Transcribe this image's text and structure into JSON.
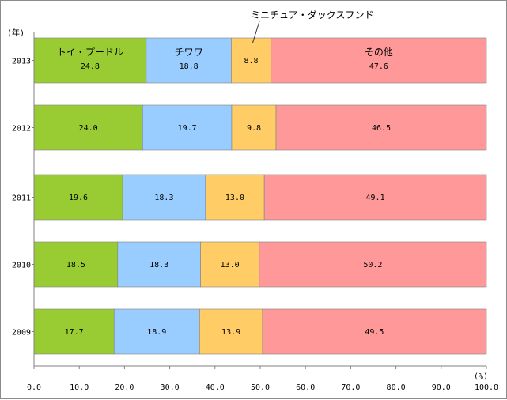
{
  "chart_data": {
    "type": "bar",
    "orientation": "horizontal",
    "stacked": true,
    "ylabel": "(年)",
    "xunit": "(%)",
    "categories": [
      "2013",
      "2012",
      "2011",
      "2010",
      "2009"
    ],
    "series": [
      {
        "name": "トイ・プードル",
        "color": "#99cc33",
        "values": [
          24.8,
          24.0,
          19.6,
          18.5,
          17.7
        ]
      },
      {
        "name": "チワワ",
        "color": "#99ccff",
        "values": [
          18.8,
          19.7,
          18.3,
          18.3,
          18.9
        ]
      },
      {
        "name": "ミニチュア・ダックスフンド",
        "color": "#ffcc66",
        "values": [
          8.8,
          9.8,
          13.0,
          13.0,
          13.9
        ]
      },
      {
        "name": "その他",
        "color": "#ff9999",
        "values": [
          47.6,
          46.5,
          49.1,
          50.2,
          49.5
        ]
      }
    ],
    "value_labels": [
      [
        "24.8",
        "18.8",
        "8.8",
        "47.6"
      ],
      [
        "24.0",
        "19.7",
        "9.8",
        "46.5"
      ],
      [
        "19.6",
        "18.3",
        "13.0",
        "49.1"
      ],
      [
        "18.5",
        "18.3",
        "13.0",
        "50.2"
      ],
      [
        "17.7",
        "18.9",
        "13.9",
        "49.5"
      ]
    ],
    "xlim": [
      0,
      100
    ],
    "xticks": [
      "0.0",
      "10.0",
      "20.0",
      "30.0",
      "40.0",
      "50.0",
      "60.0",
      "70.0",
      "80.0",
      "90.0",
      "100.0"
    ],
    "legend": "inline-on-first-bar",
    "grid": false
  }
}
